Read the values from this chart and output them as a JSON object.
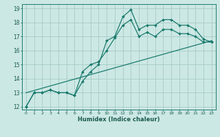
{
  "xlabel": "Humidex (Indice chaleur)",
  "bg_color": "#cce8e4",
  "grid_color": "#aaceca",
  "line_color": "#1a7a6e",
  "xlim": [
    -0.5,
    23.5
  ],
  "ylim": [
    11.8,
    19.3
  ],
  "xticks": [
    0,
    1,
    2,
    3,
    4,
    5,
    6,
    7,
    8,
    9,
    10,
    11,
    12,
    13,
    14,
    15,
    16,
    17,
    18,
    19,
    20,
    21,
    22,
    23
  ],
  "yticks": [
    12,
    13,
    14,
    15,
    16,
    17,
    18,
    19
  ],
  "series1_x": [
    0,
    1,
    2,
    3,
    4,
    5,
    6,
    7,
    8,
    9,
    10,
    11,
    12,
    13,
    14,
    15,
    16,
    17,
    18,
    19,
    20,
    21,
    22,
    23
  ],
  "series1_y": [
    12.0,
    13.0,
    13.0,
    13.2,
    13.0,
    13.0,
    12.8,
    13.8,
    14.5,
    15.0,
    16.7,
    17.0,
    18.4,
    18.9,
    17.5,
    17.8,
    17.8,
    18.2,
    18.2,
    17.8,
    17.8,
    17.5,
    16.8,
    16.6
  ],
  "series2_x": [
    0,
    1,
    2,
    3,
    4,
    5,
    6,
    7,
    8,
    9,
    10,
    11,
    12,
    13,
    14,
    15,
    16,
    17,
    18,
    19,
    20,
    21,
    22,
    23
  ],
  "series2_y": [
    12.0,
    13.0,
    13.0,
    13.2,
    13.0,
    13.0,
    12.8,
    14.5,
    15.0,
    15.2,
    16.0,
    16.9,
    17.8,
    18.2,
    17.0,
    17.3,
    17.0,
    17.5,
    17.5,
    17.2,
    17.2,
    17.0,
    16.6,
    16.6
  ],
  "trend_x": [
    0,
    23
  ],
  "trend_y": [
    13.0,
    16.7
  ]
}
